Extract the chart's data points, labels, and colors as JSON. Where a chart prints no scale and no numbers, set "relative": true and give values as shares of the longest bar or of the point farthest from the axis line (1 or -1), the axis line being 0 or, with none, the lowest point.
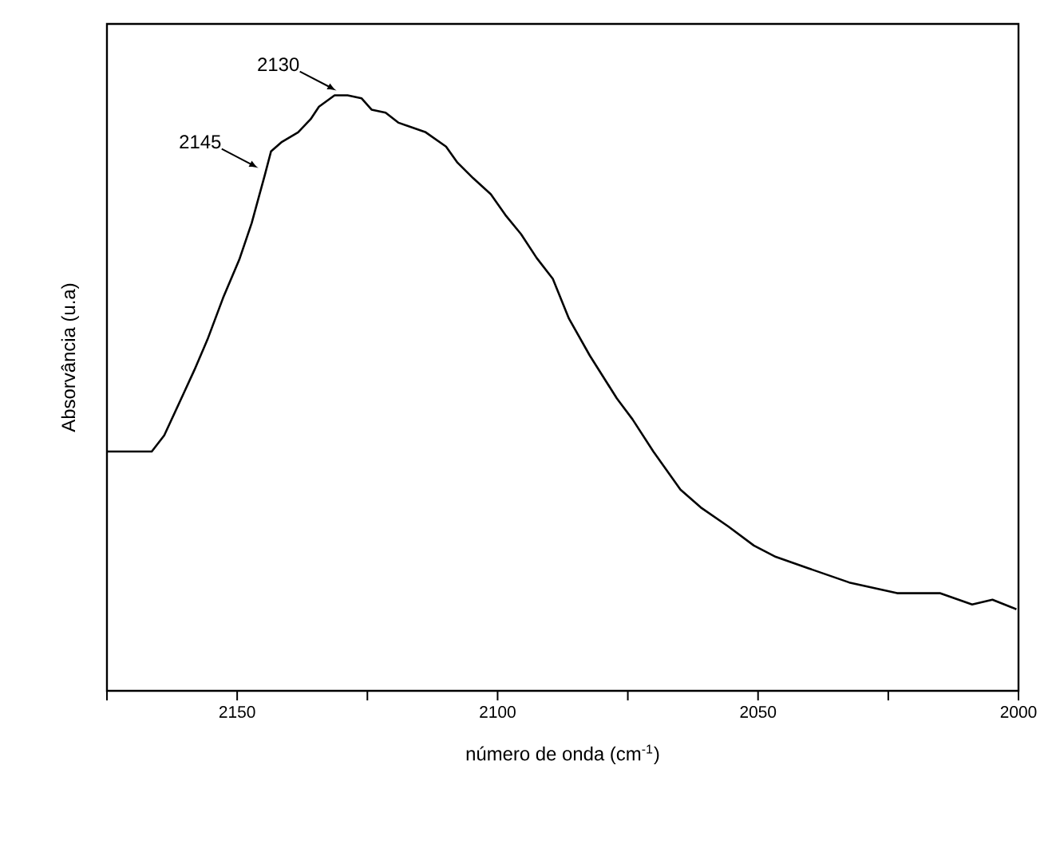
{
  "chart_data": {
    "type": "line",
    "relative": true,
    "xlabel": "número de onda (cm$^{-1}$)",
    "ylabel": "Absorvância (u.a)",
    "xlim": [
      2175,
      2000
    ],
    "xticks": [
      {
        "value": 2175,
        "label": null
      },
      2150,
      {
        "value": 2125,
        "label": null
      },
      2100,
      {
        "value": 2075,
        "label": null
      },
      2050,
      {
        "value": 2025,
        "label": null
      },
      2000
    ],
    "series": [
      {
        "color": "#000000",
        "x": [
          2175,
          2166.4,
          2164.0,
          2160.3,
          2158.2,
          2155.7,
          2152.7,
          2149.6,
          2147.2,
          2144.7,
          2143.5,
          2141.4,
          2138.3,
          2135.9,
          2134.3,
          2131.3,
          2128.8,
          2126.1,
          2124.2,
          2121.5,
          2119.0,
          2113.8,
          2109.9,
          2107.7,
          2104.7,
          2101.3,
          2098.5,
          2095.5,
          2092.5,
          2089.4,
          2086.3,
          2082.3,
          2077.1,
          2074.1,
          2070.1,
          2064.9,
          2061.0,
          2055.7,
          2050.8,
          2046.6,
          2040.4,
          2032.5,
          2023.3,
          2015.1,
          2008.9,
          2005.0,
          2000.4
        ],
        "values": [
          0.402,
          0.402,
          0.429,
          0.499,
          0.539,
          0.59,
          0.66,
          0.724,
          0.786,
          0.866,
          0.906,
          0.922,
          0.938,
          0.96,
          0.981,
          1.0,
          1.0,
          0.995,
          0.976,
          0.971,
          0.954,
          0.938,
          0.914,
          0.887,
          0.861,
          0.834,
          0.799,
          0.767,
          0.727,
          0.692,
          0.625,
          0.563,
          0.491,
          0.456,
          0.402,
          0.338,
          0.308,
          0.276,
          0.244,
          0.225,
          0.206,
          0.182,
          0.164,
          0.164,
          0.145,
          0.153,
          0.137
        ]
      }
    ],
    "annotations": [
      {
        "text": "2145",
        "x": 2145,
        "y": 0.87
      },
      {
        "text": "2130",
        "x": 2130,
        "y": 1.0
      }
    ]
  }
}
